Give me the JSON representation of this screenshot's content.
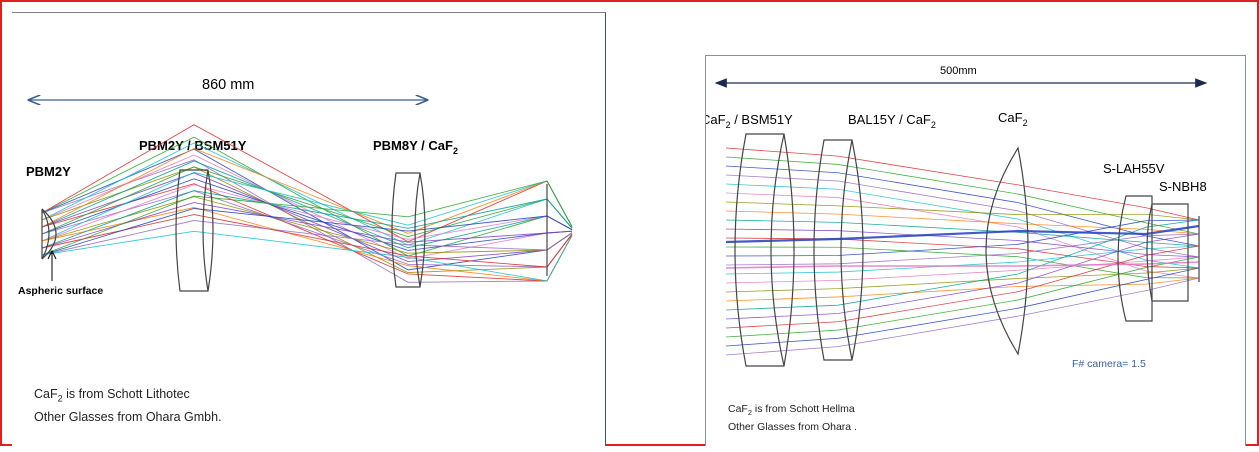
{
  "left": {
    "dimension": "860 mm",
    "labels": {
      "pbm2y": "PBM2Y",
      "group1_a": "PBM2Y / BSM51Y",
      "group2_pre": "PBM8Y / CaF",
      "group2_sub": "2",
      "asphere": "Aspheric surface"
    },
    "notes": {
      "line1_pre": "CaF",
      "line1_sub": "2",
      "line1_post": " is from Schott Lithotec",
      "line2": "Other Glasses from Ohara Gmbh."
    }
  },
  "right": {
    "dimension": "500mm",
    "labels": {
      "g1_pre": "CaF",
      "g1_sub": "2",
      "g1_post": " / BSM51Y",
      "g2_pre": "BAL15Y / CaF",
      "g2_sub": "2",
      "g3_pre": "CaF",
      "g3_sub": "2",
      "slah": "S-LAH55V",
      "snbh": "S-NBH8",
      "fnum": "F# camera= 1.5"
    },
    "notes": {
      "line1_pre": "CaF",
      "line1_sub": "2",
      "line1_post": " is from Schott Hellma",
      "line2": "Other Glasses from Ohara ."
    }
  },
  "colors": {
    "frame": "#e02020",
    "arrow": "#3a5f90",
    "lens": "#444444",
    "fnum": "#3a5fa0",
    "rays": [
      "#d62728",
      "#2ca02c",
      "#1f3fbf",
      "#9467bd",
      "#17becf",
      "#e377c2",
      "#8c8c00",
      "#ff7f0e",
      "#00a090",
      "#7f3fbf"
    ]
  }
}
